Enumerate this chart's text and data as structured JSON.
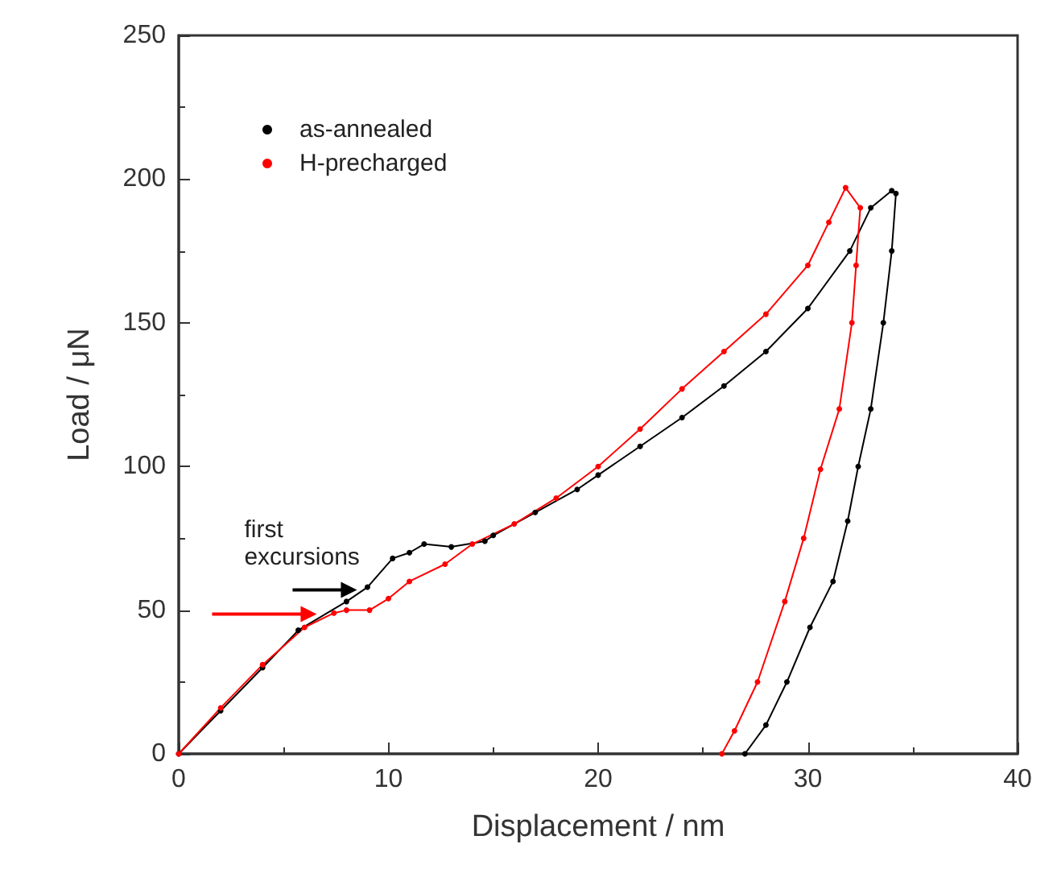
{
  "chart_data": {
    "type": "line",
    "xlabel": "Displacement / nm",
    "ylabel": "Load / μN",
    "xlim": [
      0,
      40
    ],
    "xticks": [
      0,
      10,
      20,
      30,
      40
    ],
    "ylim": [
      0,
      250
    ],
    "yticks": [
      0,
      50,
      100,
      150,
      200,
      250
    ],
    "grid": false,
    "legend": "top left",
    "marker": "circle",
    "line_style": "solid",
    "annotations": [
      {
        "text": "first excursions",
        "x": 8.5,
        "y": 57
      }
    ],
    "series": [
      {
        "name": "as-annealed",
        "color": "#000000",
        "x": [
          0,
          2,
          4,
          5.7,
          8,
          9,
          10.2,
          11,
          11.7,
          13,
          14.6,
          15,
          17,
          19,
          20,
          22,
          24,
          26,
          28,
          30,
          32,
          33,
          34,
          34.2,
          34,
          33.6,
          33,
          32.4,
          31.9,
          31.2,
          30.1,
          29,
          28,
          27
        ],
        "values": [
          0,
          15,
          30,
          43,
          53,
          58,
          68,
          70,
          73,
          72,
          74,
          76,
          84,
          92,
          97,
          107,
          117,
          128,
          140,
          155,
          175,
          190,
          196,
          195,
          175,
          150,
          120,
          100,
          81,
          60,
          44,
          25,
          10,
          0
        ]
      },
      {
        "name": "H-precharged",
        "color": "#ff0000",
        "x": [
          0,
          2,
          4,
          6,
          7.4,
          8,
          9.1,
          10,
          11,
          12.7,
          14,
          16,
          18,
          20,
          22,
          24,
          26,
          28,
          30,
          31,
          31.8,
          32.5,
          32.3,
          32.1,
          31.5,
          30.6,
          29.8,
          28.9,
          27.6,
          26.5,
          25.9
        ],
        "values": [
          0,
          16,
          31,
          44,
          49,
          50,
          50,
          54,
          60,
          66,
          73,
          80,
          89,
          100,
          113,
          127,
          140,
          153,
          170,
          185,
          197,
          190,
          170,
          150,
          120,
          99,
          75,
          53,
          25,
          8,
          0
        ]
      }
    ]
  }
}
